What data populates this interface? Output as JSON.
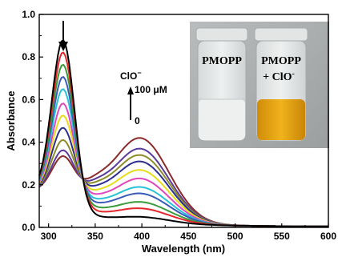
{
  "chart_data": {
    "type": "line",
    "xlabel": "Wavelength (nm)",
    "ylabel": "Absorbance",
    "xlim": [
      290,
      600
    ],
    "ylim": [
      0.0,
      1.0
    ],
    "x_ticks": [
      "300",
      "350",
      "400",
      "450",
      "500",
      "550",
      "600"
    ],
    "y_ticks": [
      "0.0",
      "0.2",
      "0.4",
      "0.6",
      "0.8",
      "1.0"
    ],
    "grid": false,
    "annotations": {
      "analyte": "ClO",
      "analyte_sup": "−",
      "upper_conc": "100 μM",
      "lower_conc": "0"
    },
    "inset_photo": {
      "left_vial_label": "PMOPP",
      "right_vial_label_1": "PMOPP",
      "right_vial_label_2": "+ ClO",
      "right_vial_label_sup": "-",
      "left_liquid_color": "#eef0ef",
      "right_liquid_color": "#e4a512"
    },
    "isosbestic_point": [
      345,
      0.19
    ],
    "series": [
      {
        "color": "#000000",
        "peak1": 0.78,
        "peak2": 0.03
      },
      {
        "color": "#e4262a",
        "peak1": 0.72,
        "peak2": 0.07
      },
      {
        "color": "#3a9a3c",
        "peak1": 0.66,
        "peak2": 0.1
      },
      {
        "color": "#3a5ab7",
        "peak1": 0.6,
        "peak2": 0.14
      },
      {
        "color": "#27c2d8",
        "peak1": 0.54,
        "peak2": 0.17
      },
      {
        "color": "#e046bd",
        "peak1": 0.47,
        "peak2": 0.21
      },
      {
        "color": "#e8dc1a",
        "peak1": 0.41,
        "peak2": 0.25
      },
      {
        "color": "#2d2f8f",
        "peak1": 0.35,
        "peak2": 0.29
      },
      {
        "color": "#8c8c2a",
        "peak1": 0.29,
        "peak2": 0.32
      },
      {
        "color": "#5b3a9e",
        "peak1": 0.24,
        "peak2": 0.35
      },
      {
        "color": "#8a2b2b",
        "peak1": 0.21,
        "peak2": 0.4
      }
    ]
  }
}
